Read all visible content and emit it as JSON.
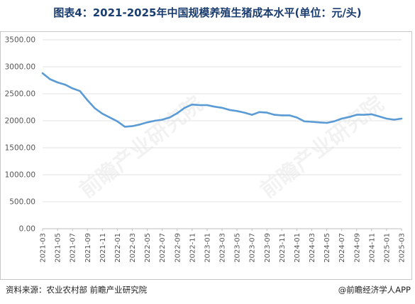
{
  "chart_data": {
    "type": "line",
    "title": "图表4：2021-2025年中国规模养殖生猪成本水平(单位：元/头)",
    "xlabel": "",
    "ylabel": "",
    "ylim": [
      0,
      3500
    ],
    "yticks": [
      "0.00",
      "500.00",
      "1000.00",
      "1500.00",
      "2000.00",
      "2500.00",
      "3000.00",
      "3500.00"
    ],
    "grid": "horizontal",
    "legend": "none",
    "x": [
      "2021-03",
      "2021-04",
      "2021-05",
      "2021-06",
      "2021-07",
      "2021-08",
      "2021-09",
      "2021-10",
      "2021-11",
      "2021-12",
      "2022-01",
      "2022-02",
      "2022-03",
      "2022-04",
      "2022-05",
      "2022-06",
      "2022-07",
      "2022-08",
      "2022-09",
      "2022-10",
      "2022-11",
      "2022-12",
      "2023-01",
      "2023-02",
      "2023-03",
      "2023-04",
      "2023-05",
      "2023-06",
      "2023-07",
      "2023-08",
      "2023-09",
      "2023-10",
      "2023-11",
      "2023-12",
      "2024-01",
      "2024-02",
      "2024-03",
      "2024-04",
      "2024-05",
      "2024-06",
      "2024-07",
      "2024-08",
      "2024-09",
      "2024-10",
      "2024-11",
      "2024-12",
      "2025-01",
      "2025-02",
      "2025-03"
    ],
    "xticks": [
      "2021-03",
      "2021-05",
      "2021-07",
      "2021-09",
      "2021-11",
      "2022-01",
      "2022-03",
      "2022-05",
      "2022-07",
      "2022-09",
      "2022-11",
      "2023-01",
      "2023-03",
      "2023-05",
      "2023-07",
      "2023-09",
      "2023-11",
      "2024-01",
      "2024-03",
      "2024-05",
      "2024-07",
      "2024-09",
      "2024-11",
      "2025-01",
      "2025-03"
    ],
    "series": [
      {
        "color": "#5b9bd5",
        "values": [
          2880,
          2770,
          2710,
          2670,
          2600,
          2550,
          2380,
          2230,
          2130,
          2060,
          1990,
          1890,
          1900,
          1930,
          1970,
          2000,
          2020,
          2060,
          2140,
          2240,
          2300,
          2290,
          2290,
          2260,
          2240,
          2200,
          2180,
          2150,
          2110,
          2160,
          2150,
          2110,
          2100,
          2100,
          2060,
          1990,
          1980,
          1970,
          1960,
          1990,
          2040,
          2070,
          2110,
          2110,
          2120,
          2080,
          2040,
          2020,
          2040
        ]
      }
    ]
  },
  "footer": {
    "source": "资料来源：农业农村部 前瞻产业研究院",
    "credit": "@前瞻经济学人APP"
  },
  "watermark": "前瞻产业研究院"
}
